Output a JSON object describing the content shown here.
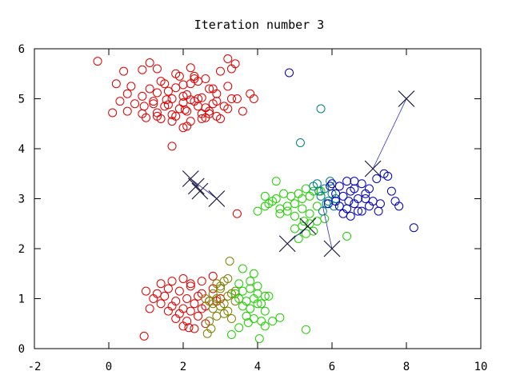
{
  "chart_data": {
    "type": "scatter",
    "title": "Iteration number 3",
    "xlabel": "",
    "ylabel": "",
    "xlim": [
      -2,
      10
    ],
    "ylim": [
      0,
      6
    ],
    "xticks": [
      "-2",
      "0",
      "2",
      "4",
      "6",
      "8",
      "10"
    ],
    "yticks": [
      "0",
      "1",
      "2",
      "3",
      "4",
      "5",
      "6"
    ],
    "grid": false,
    "legend": "none",
    "marker_colors": {
      "red": "#e00000",
      "olive": "#7f8000",
      "green": "#20d000",
      "teal": "#007f7f",
      "blue": "#0000c0",
      "centroid": "#1a1a40",
      "path": "#3030c0"
    },
    "series": [
      {
        "color": "red",
        "marker": "circle",
        "x": [
          -0.3,
          0.4,
          0.9,
          1.3,
          1.8,
          2.2,
          2.6,
          3.0,
          3.4,
          0.2,
          0.6,
          1.1,
          1.5,
          2.0,
          2.4,
          2.8,
          3.2,
          0.5,
          0.9,
          1.3,
          1.7,
          2.1,
          2.5,
          2.9,
          3.3,
          3.8,
          0.3,
          0.7,
          1.2,
          1.6,
          2.0,
          2.4,
          2.8,
          3.1,
          3.6,
          0.1,
          0.5,
          0.9,
          1.3,
          1.7,
          2.1,
          2.5,
          2.9,
          3.2,
          1.0,
          1.4,
          1.8,
          2.2,
          2.6,
          3.0,
          1.9,
          2.3,
          2.7,
          1.6,
          2.0,
          2.4,
          1.5,
          1.9,
          2.3,
          2.7,
          1.7,
          2.1,
          2.5,
          1.3,
          1.1,
          1.4,
          1.8,
          2.2,
          2.6,
          2.0,
          2.3,
          3.9,
          3.45,
          1.7,
          1.2,
          2.7,
          2.9,
          2.2,
          0.95,
          1.55,
          2.05,
          3.3,
          3.2
        ],
        "y": [
          5.75,
          5.55,
          5.58,
          5.6,
          5.5,
          5.62,
          5.4,
          5.55,
          5.7,
          5.3,
          5.25,
          5.2,
          5.3,
          5.28,
          5.35,
          5.2,
          5.25,
          5.1,
          5.05,
          5.12,
          5.0,
          5.08,
          5.02,
          5.1,
          5.0,
          5.1,
          4.95,
          4.9,
          4.95,
          4.88,
          4.92,
          4.85,
          4.9,
          4.85,
          4.75,
          4.72,
          4.75,
          4.7,
          4.72,
          4.68,
          4.75,
          4.7,
          4.65,
          4.8,
          4.62,
          4.6,
          4.65,
          4.55,
          4.62,
          4.6,
          5.45,
          5.4,
          5.2,
          5.15,
          5.05,
          5.0,
          4.85,
          4.8,
          4.95,
          4.75,
          4.55,
          4.45,
          4.6,
          4.65,
          5.72,
          5.35,
          5.22,
          4.98,
          4.82,
          4.42,
          5.45,
          5.0,
          5.0,
          4.05,
          4.9,
          4.7,
          4.95,
          5.3,
          4.85,
          4.98,
          4.78,
          5.6,
          5.8
        ]
      },
      {
        "color": "red",
        "marker": "circle",
        "x": [
          1.0,
          1.3,
          1.6,
          1.9,
          2.2,
          2.5,
          2.8,
          1.2,
          1.5,
          1.8,
          2.1,
          2.4,
          2.7,
          3.0,
          1.4,
          1.7,
          2.0,
          2.3,
          2.6,
          2.9,
          1.6,
          1.9,
          2.2,
          2.5,
          1.8,
          2.1,
          2.4,
          2.0,
          2.3,
          2.6,
          1.1,
          1.4,
          1.7,
          2.0,
          2.2,
          2.5,
          2.8,
          3.45,
          0.95,
          2.15
        ],
        "y": [
          1.15,
          1.1,
          1.2,
          1.15,
          1.25,
          1.1,
          1.2,
          1.0,
          1.05,
          0.95,
          1.0,
          1.05,
          0.95,
          1.0,
          0.9,
          0.85,
          0.8,
          0.9,
          0.85,
          0.95,
          0.75,
          0.7,
          0.75,
          0.8,
          0.6,
          0.55,
          0.65,
          0.45,
          0.4,
          0.5,
          0.8,
          1.3,
          1.35,
          1.4,
          1.3,
          1.35,
          1.45,
          2.7,
          0.25,
          0.42
        ]
      },
      {
        "color": "olive",
        "marker": "circle",
        "x": [
          2.6,
          2.8,
          3.0,
          3.2,
          3.4,
          2.7,
          2.9,
          3.1,
          3.3,
          2.8,
          3.0,
          3.2,
          3.4,
          2.9,
          3.1,
          3.3,
          2.7,
          2.9,
          3.1,
          3.0,
          3.2,
          2.8,
          3.25,
          2.75,
          2.65
        ],
        "y": [
          1.0,
          1.1,
          1.2,
          1.05,
          1.15,
          0.95,
          1.0,
          0.9,
          1.1,
          0.8,
          0.85,
          0.75,
          0.95,
          0.65,
          0.7,
          0.6,
          0.55,
          1.3,
          1.35,
          1.25,
          1.4,
          0.9,
          1.75,
          0.4,
          0.3
        ]
      },
      {
        "color": "green",
        "marker": "circle",
        "x": [
          3.4,
          3.6,
          3.8,
          4.0,
          4.2,
          3.5,
          3.7,
          3.9,
          4.1,
          4.3,
          3.6,
          3.8,
          4.0,
          4.2,
          3.7,
          3.9,
          4.1,
          3.5,
          3.8,
          4.0,
          4.4,
          3.6,
          3.9,
          4.2,
          4.6,
          4.05,
          5.3,
          3.3,
          3.5,
          3.75
        ],
        "y": [
          1.1,
          1.15,
          1.2,
          1.1,
          1.05,
          1.0,
          0.95,
          1.0,
          0.9,
          1.05,
          0.85,
          0.8,
          0.9,
          0.75,
          0.65,
          0.6,
          0.55,
          1.3,
          1.35,
          1.25,
          0.55,
          1.6,
          1.5,
          0.45,
          0.62,
          0.2,
          0.38,
          0.28,
          0.42,
          0.52
        ]
      },
      {
        "color": "green",
        "marker": "circle",
        "x": [
          4.0,
          4.2,
          4.4,
          4.6,
          4.8,
          5.0,
          5.2,
          5.4,
          4.3,
          4.5,
          4.7,
          4.9,
          5.1,
          5.3,
          5.5,
          4.6,
          4.8,
          5.0,
          5.2,
          5.4,
          5.6,
          5.0,
          5.2,
          5.4,
          5.6,
          5.8,
          5.1,
          5.3,
          5.5,
          4.2,
          4.5,
          5.7,
          6.4,
          5.25
        ],
        "y": [
          2.75,
          2.85,
          2.95,
          2.8,
          2.85,
          2.9,
          3.0,
          3.05,
          2.9,
          3.0,
          3.1,
          3.05,
          3.1,
          3.2,
          3.15,
          2.7,
          2.75,
          2.65,
          2.8,
          2.7,
          2.85,
          2.4,
          2.45,
          2.5,
          2.55,
          2.6,
          2.2,
          2.3,
          2.35,
          3.05,
          3.35,
          3.15,
          2.25,
          2.55
        ]
      },
      {
        "color": "teal",
        "marker": "circle",
        "x": [
          5.6,
          5.8,
          6.0,
          5.7,
          5.9,
          6.1,
          5.5,
          5.65,
          5.85,
          6.05,
          5.75,
          5.95,
          5.15,
          5.7
        ],
        "y": [
          3.3,
          3.2,
          3.1,
          3.05,
          2.95,
          3.0,
          3.25,
          3.15,
          2.9,
          2.85,
          2.75,
          3.35,
          4.12,
          4.8
        ]
      },
      {
        "color": "blue",
        "marker": "circle",
        "x": [
          6.0,
          6.2,
          6.4,
          6.6,
          6.8,
          7.0,
          7.2,
          7.4,
          6.1,
          6.3,
          6.5,
          6.7,
          6.9,
          7.1,
          7.3,
          6.2,
          6.4,
          6.6,
          6.8,
          7.0,
          6.3,
          6.5,
          6.7,
          5.9,
          6.1,
          6.6,
          7.6,
          7.8,
          8.2,
          7.5,
          7.7,
          6.9,
          7.25,
          4.85,
          5.95,
          6.45
        ],
        "y": [
          3.3,
          3.25,
          3.35,
          3.2,
          3.3,
          3.2,
          3.4,
          3.5,
          3.1,
          3.05,
          3.15,
          3.0,
          3.1,
          2.95,
          2.9,
          2.85,
          2.8,
          2.9,
          2.75,
          2.85,
          2.7,
          2.65,
          2.75,
          2.9,
          2.95,
          3.35,
          3.15,
          2.85,
          2.42,
          3.45,
          2.95,
          3.0,
          2.75,
          5.52,
          3.25,
          2.95
        ]
      }
    ],
    "centroid_paths": [
      {
        "x": [
          2.2,
          2.9
        ],
        "y": [
          3.4,
          3.0
        ]
      },
      {
        "x": [
          8.0,
          7.1
        ],
        "y": [
          5.0,
          3.6
        ]
      },
      {
        "x": [
          4.8,
          5.35
        ],
        "y": [
          2.1,
          2.45
        ]
      },
      {
        "x": [
          6.0,
          5.75
        ],
        "y": [
          2.0,
          2.85
        ]
      }
    ],
    "centroids": {
      "marker": "x",
      "x": [
        8.0,
        7.1,
        2.2,
        2.35,
        2.45,
        2.9,
        4.8,
        5.35,
        6.0
      ],
      "y": [
        5.0,
        3.6,
        3.4,
        3.25,
        3.15,
        3.0,
        2.1,
        2.45,
        2.0
      ]
    }
  }
}
